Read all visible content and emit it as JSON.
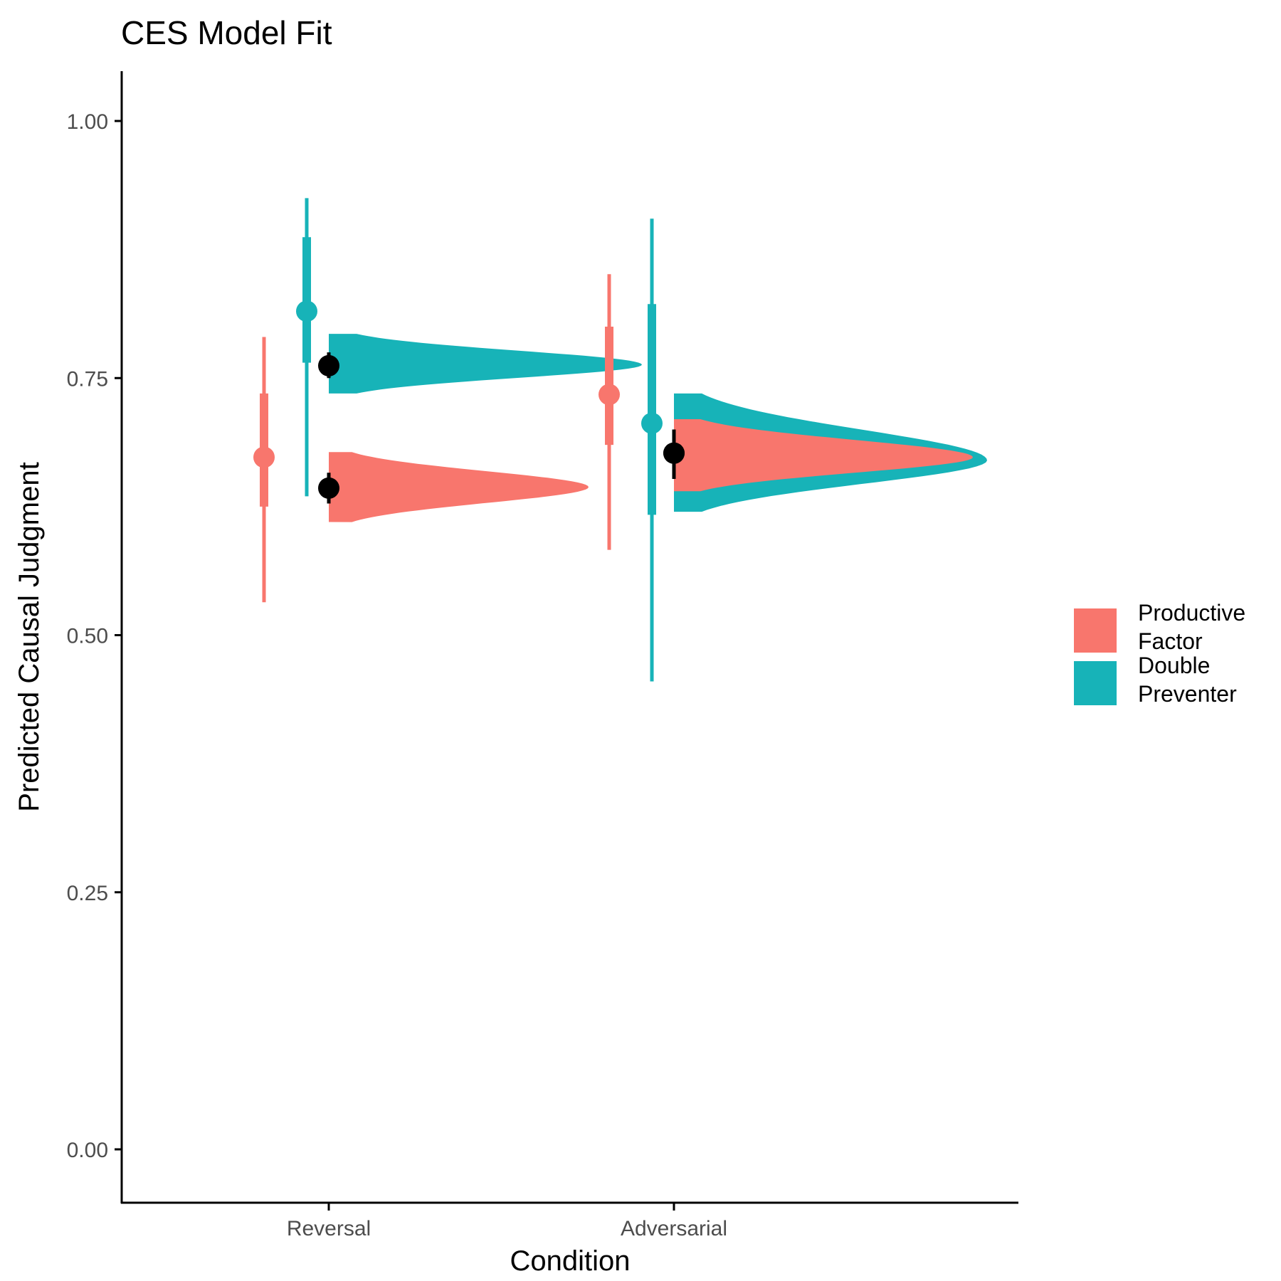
{
  "chart_data": {
    "type": "posterior-halfeye",
    "title": "CES Model Fit",
    "xlabel": "Condition",
    "ylabel": "Predicted Causal Judgment",
    "ylim": [
      -0.05,
      1.05
    ],
    "y_ticks": [
      "0.00",
      "0.25",
      "0.50",
      "0.75",
      "1.00"
    ],
    "y_tick_values": [
      0,
      0.25,
      0.5,
      0.75,
      1.0
    ],
    "categories": [
      "Reversal",
      "Adversarial"
    ],
    "grid": false,
    "legend_position": "right",
    "series": [
      {
        "name_lines": [
          "Productive",
          "Factor"
        ],
        "color": "#F8766D",
        "empirical": [
          {
            "category": "Reversal",
            "mean": 0.673,
            "inner": [
              0.625,
              0.735
            ],
            "outer": [
              0.532,
              0.79
            ]
          },
          {
            "category": "Adversarial",
            "mean": 0.734,
            "inner": [
              0.685,
              0.8
            ],
            "outer": [
              0.583,
              0.851
            ]
          }
        ],
        "model": [
          {
            "category": "Reversal",
            "mean": 0.643,
            "interval": [
              0.628,
              0.658
            ],
            "density_range": [
              0.61,
              0.678
            ],
            "density_mode": 0.644
          },
          {
            "category": "Adversarial",
            "mean": 0.677,
            "interval": [
              0.652,
              0.7
            ],
            "density_range": [
              0.64,
              0.71
            ],
            "density_mode": 0.673
          }
        ]
      },
      {
        "name_lines": [
          "Double",
          "Preventer"
        ],
        "color": "#17B3B8",
        "empirical": [
          {
            "category": "Reversal",
            "mean": 0.815,
            "inner": [
              0.765,
              0.887
            ],
            "outer": [
              0.635,
              0.925
            ]
          },
          {
            "category": "Adversarial",
            "mean": 0.706,
            "inner": [
              0.617,
              0.822
            ],
            "outer": [
              0.455,
              0.905
            ]
          }
        ],
        "model": [
          {
            "category": "Reversal",
            "mean": 0.762,
            "interval": [
              0.75,
              0.775
            ],
            "density_range": [
              0.735,
              0.793
            ],
            "density_mode": 0.763
          },
          {
            "category": "Adversarial",
            "mean": 0.677,
            "interval": [
              0.652,
              0.7
            ],
            "density_range": [
              0.62,
              0.735
            ],
            "density_mode": 0.67
          }
        ]
      }
    ]
  }
}
